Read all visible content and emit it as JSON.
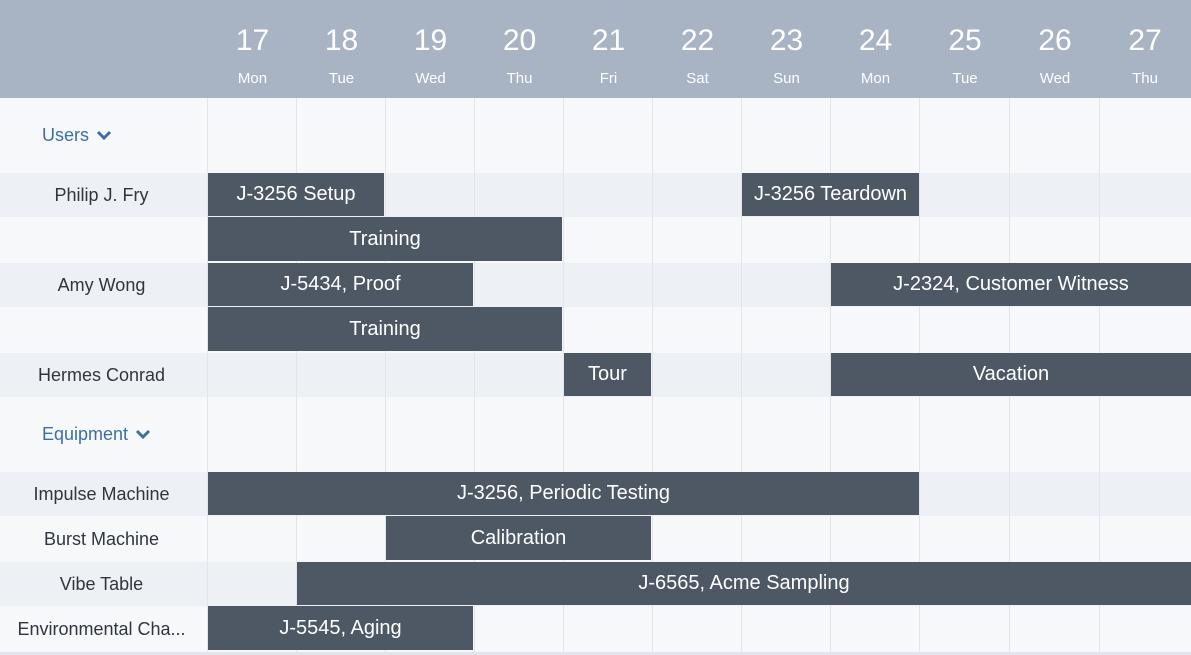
{
  "days": [
    {
      "num": "17",
      "dow": "Mon"
    },
    {
      "num": "18",
      "dow": "Tue"
    },
    {
      "num": "19",
      "dow": "Wed"
    },
    {
      "num": "20",
      "dow": "Thu"
    },
    {
      "num": "21",
      "dow": "Fri"
    },
    {
      "num": "22",
      "dow": "Sat"
    },
    {
      "num": "23",
      "dow": "Sun"
    },
    {
      "num": "24",
      "dow": "Mon"
    },
    {
      "num": "25",
      "dow": "Tue"
    },
    {
      "num": "26",
      "dow": "Wed"
    },
    {
      "num": "27",
      "dow": "Thu"
    }
  ],
  "groups": {
    "users": {
      "label": "Users",
      "icon": "chevron-down-icon"
    },
    "equipment": {
      "label": "Equipment",
      "icon": "chevron-down-icon"
    }
  },
  "resources": {
    "fry": "Philip J. Fry",
    "amy": "Amy Wong",
    "hermes": "Hermes Conrad",
    "impulse": "Impulse Machine",
    "burst": "Burst Machine",
    "vibe": "Vibe Table",
    "env": "Environmental Cha..."
  },
  "events": {
    "fry_setup": "J-3256 Setup",
    "fry_teardown": "J-3256 Teardown",
    "fry_training": "Training",
    "amy_proof": "J-5434, Proof",
    "amy_witness": "J-2324, Customer Witness",
    "amy_training": "Training",
    "hermes_tour": "Tour",
    "hermes_vacation": "Vacation",
    "impulse_testing": "J-3256, Periodic Testing",
    "burst_calibration": "Calibration",
    "vibe_sampling": "J-6565, Acme Sampling",
    "env_aging": "J-5545, Aging"
  },
  "colors": {
    "header": "#a8b3c4",
    "event": "#4d5864",
    "group_link": "#3e6fa3"
  }
}
